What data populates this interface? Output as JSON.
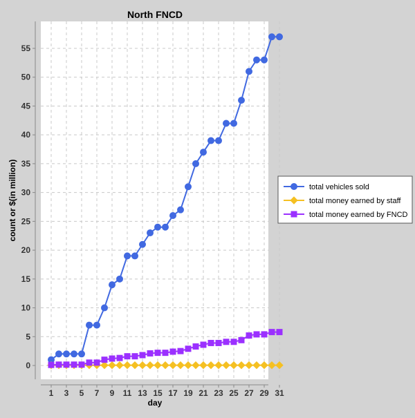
{
  "chart_data": {
    "type": "line",
    "title": "North FNCD",
    "xlabel": "day",
    "ylabel": "count or $(in million)",
    "xlim": [
      0,
      32
    ],
    "ylim": [
      -2,
      59
    ],
    "x_ticks": [
      1,
      3,
      5,
      7,
      9,
      11,
      13,
      15,
      17,
      19,
      21,
      23,
      25,
      27,
      29,
      31
    ],
    "y_ticks": [
      0,
      5,
      10,
      15,
      20,
      25,
      30,
      35,
      40,
      45,
      50,
      55
    ],
    "grid": true,
    "legend_position": "right",
    "x": [
      1,
      2,
      3,
      4,
      5,
      6,
      7,
      8,
      9,
      10,
      11,
      12,
      13,
      14,
      15,
      16,
      17,
      18,
      19,
      20,
      21,
      22,
      23,
      24,
      25,
      26,
      27,
      28,
      29,
      30,
      31
    ],
    "series": [
      {
        "name": "total vehicles sold",
        "color": "#4169e1",
        "marker": "circle",
        "values": [
          1,
          2,
          2,
          2,
          2,
          7,
          7,
          10,
          14,
          15,
          19,
          19,
          21,
          23,
          24,
          24,
          26,
          27,
          31,
          35,
          37,
          39,
          39,
          42,
          42,
          46,
          51,
          53,
          53,
          57,
          57
        ]
      },
      {
        "name": "total money earned by staff",
        "color": "#f5c022",
        "marker": "diamond",
        "values": [
          0.05,
          0.05,
          0.05,
          0.05,
          0.05,
          0.05,
          0.05,
          0.05,
          0.05,
          0.05,
          0.05,
          0.05,
          0.05,
          0.05,
          0.05,
          0.05,
          0.05,
          0.05,
          0.05,
          0.05,
          0.05,
          0.05,
          0.05,
          0.05,
          0.05,
          0.05,
          0.05,
          0.05,
          0.05,
          0.05,
          0.05
        ]
      },
      {
        "name": "total money earned by FNCD",
        "color": "#9b30ff",
        "marker": "square",
        "values": [
          0.1,
          0.15,
          0.15,
          0.15,
          0.15,
          0.5,
          0.5,
          1.0,
          1.2,
          1.3,
          1.6,
          1.6,
          1.8,
          2.1,
          2.2,
          2.2,
          2.4,
          2.5,
          2.9,
          3.3,
          3.6,
          3.9,
          3.9,
          4.1,
          4.1,
          4.4,
          5.2,
          5.4,
          5.4,
          5.8,
          5.8
        ]
      }
    ]
  }
}
